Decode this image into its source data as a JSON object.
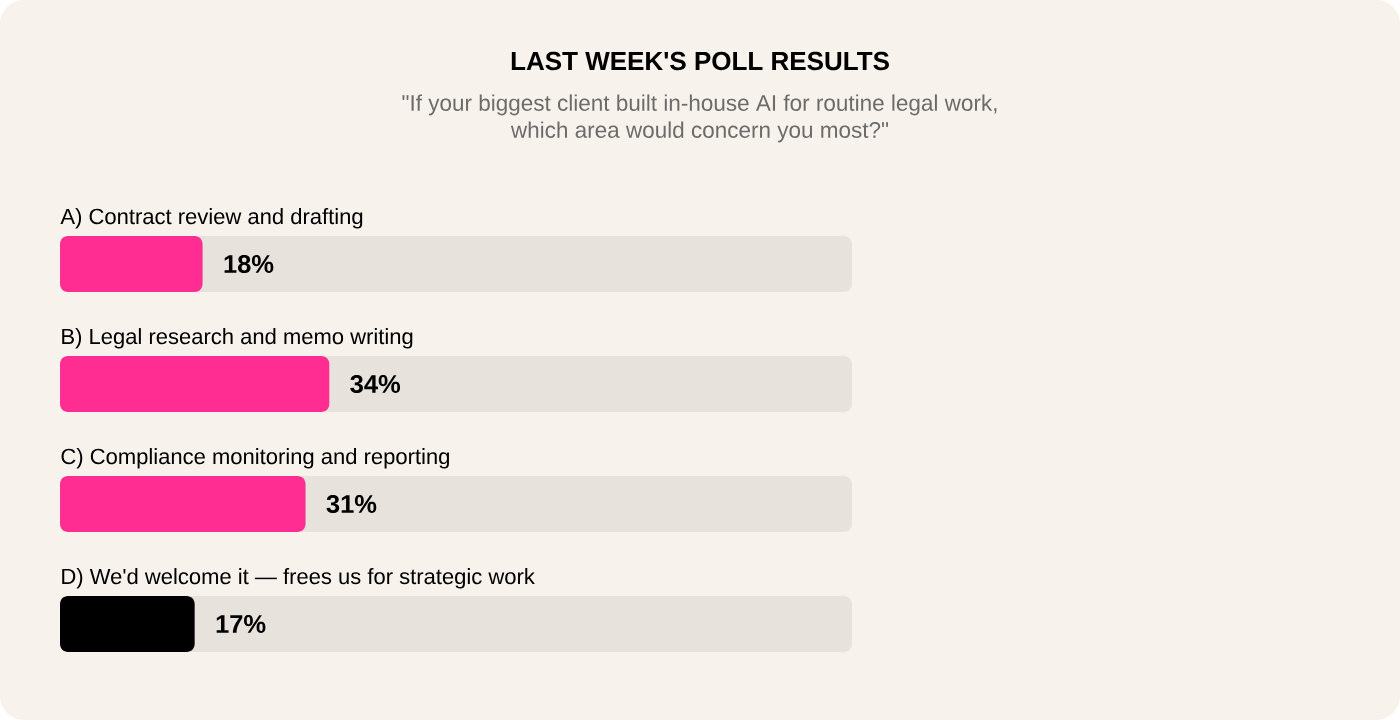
{
  "chart_data": {
    "type": "bar",
    "orientation": "horizontal",
    "title": "LAST WEEK'S POLL RESULTS",
    "subtitle": "\"If your biggest client built in-house AI for routine legal work, which area would concern you most?\"",
    "categories": [
      "A) Contract review and drafting",
      "B) Legal research and memo writing",
      "C) Compliance monitoring and reporting",
      "D) We'd welcome it — frees us for strategic work"
    ],
    "values": [
      18,
      34,
      31,
      17
    ],
    "colors": [
      "#ff2d92",
      "#ff2d92",
      "#ff2d92",
      "#000000"
    ],
    "value_labels": [
      "18%",
      "34%",
      "31%",
      "17%"
    ],
    "xlim": [
      0,
      100
    ]
  }
}
